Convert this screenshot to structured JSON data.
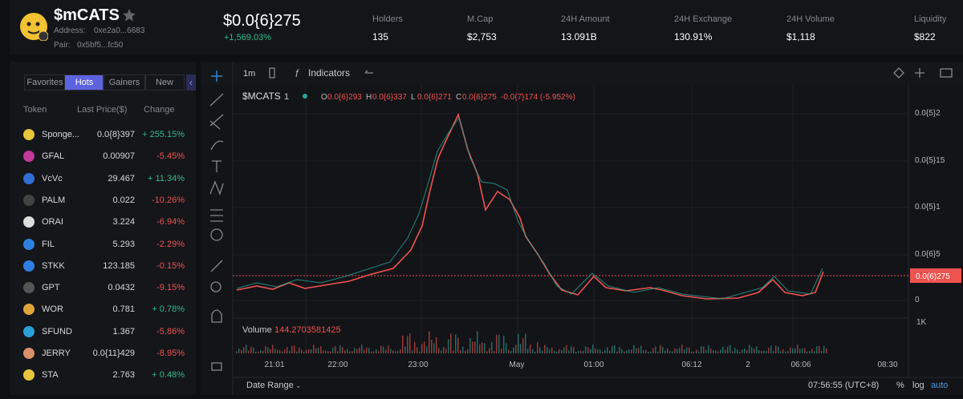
{
  "header": {
    "title": "$mCATS",
    "address_label": "Address:",
    "address": "0xe2a0...6683",
    "pair_label": "Pair:",
    "pair": "0x5bf5...fc50",
    "price": "$0.0{6}275",
    "change": "+1,569.03%",
    "stats": [
      {
        "label": "Holders",
        "value": "135"
      },
      {
        "label": "M.Cap",
        "value": "$2,753"
      },
      {
        "label": "24H Amount",
        "value": "13.091B"
      },
      {
        "label": "24H Exchange",
        "value": "130.91%"
      },
      {
        "label": "24H Volume",
        "value": "$1,118"
      },
      {
        "label": "Liquidity",
        "value": "$822"
      }
    ]
  },
  "sidebar": {
    "tabs": [
      "Favorites",
      "Hots",
      "Gainers",
      "New"
    ],
    "columns": [
      "Token",
      "Last Price($)",
      "Change"
    ],
    "rows": [
      [
        "Sponge...",
        "0.0{8}397",
        "+ 255.15%"
      ],
      [
        "GFAL",
        "0.00907",
        "-5.45%"
      ],
      [
        "VcVc",
        "29.467",
        "+ 11.34%"
      ],
      [
        "PALM",
        "0.022",
        "-10.26%"
      ],
      [
        "ORAI",
        "3.224",
        "-6.94%"
      ],
      [
        "FIL",
        "5.293",
        "-2.29%"
      ],
      [
        "STKK",
        "123.185",
        "-0.15%"
      ],
      [
        "GPT",
        "0.0432",
        "-9.15%"
      ],
      [
        "WOR",
        "0.781",
        "+ 0.78%"
      ],
      [
        "SFUND",
        "1.367",
        "-5.86%"
      ],
      [
        "JERRY",
        "0.0{11}429",
        "-8.95%"
      ],
      [
        "STA",
        "2.763",
        "+ 0.48%"
      ]
    ]
  },
  "chart": {
    "interval": "1m",
    "indicators": "Indicators",
    "symbol": "$MCATS",
    "multiplier": "1",
    "ohlc": [
      {
        "label": "O",
        "value": "0.0{6}293"
      },
      {
        "label": "H",
        "value": "0.0{6}337"
      },
      {
        "label": "L",
        "value": "0.0{6}271"
      },
      {
        "label": "C",
        "value": "0.0{6}275"
      }
    ],
    "delta": "-0.0{7}174 (-5.952%)",
    "price_axis": [
      "0.0{5}2",
      "0.0{5}15",
      "0.0{5}1",
      "0.0{6}5",
      "0"
    ],
    "last_price": "0.0(6)275",
    "volume_label": "Volume",
    "volume_value": "144.2703581425",
    "volume_axis": "1K",
    "time_axis": [
      "21:01",
      "22:00",
      "23:00",
      "May",
      "01:00",
      "06:12",
      "2",
      "06:06",
      "08:30"
    ],
    "footer": {
      "date_range": "Date Range",
      "clock": "07:56:55 (UTC+8)",
      "percent": "%",
      "log": "log",
      "auto": "auto"
    }
  }
}
